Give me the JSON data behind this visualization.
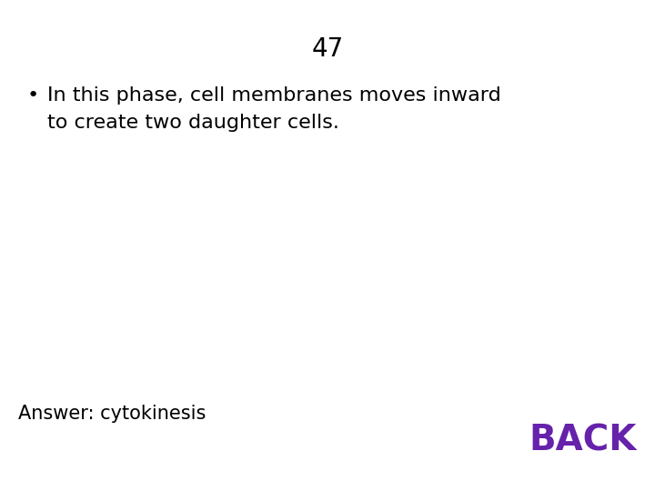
{
  "title": "47",
  "title_fontsize": 20,
  "title_color": "#000000",
  "bullet_char": "•",
  "bullet_line1": "In this phase, cell membranes moves inward",
  "bullet_line2": "to create two daughter cells.",
  "bullet_fontsize": 16,
  "bullet_color": "#000000",
  "answer_text": "Answer: cytokinesis",
  "answer_fontsize": 15,
  "answer_color": "#000000",
  "back_text": "BACK",
  "back_fontsize": 28,
  "back_color": "#6622aa",
  "background_color": "#ffffff"
}
